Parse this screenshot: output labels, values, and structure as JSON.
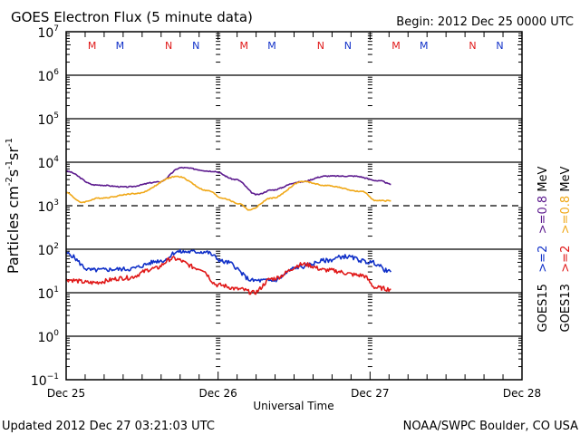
{
  "chart_data": {
    "type": "line",
    "title": "GOES Electron Flux (5 minute data)",
    "begin_label": "Begin: 2012 Dec 25 0000 UTC",
    "xlabel": "Universal Time",
    "ylabel_parts": {
      "main": "Particles cm",
      "e1": "-2",
      "s": "s",
      "e2": "-1",
      "sr": "sr",
      "e3": "-1"
    },
    "x_unit": "hours since 2012 Dec 25 0000 UTC",
    "xlim": [
      0,
      72
    ],
    "x_ticks": [
      {
        "hours": 0,
        "label": "Dec 25"
      },
      {
        "hours": 24,
        "label": "Dec 26"
      },
      {
        "hours": 48,
        "label": "Dec 27"
      },
      {
        "hours": 72,
        "label": "Dec 28"
      }
    ],
    "y_scale": "log",
    "ylim": [
      0.1,
      10000000
    ],
    "y_ticks": [
      {
        "exp": 7,
        "base": "10",
        "sup": "7"
      },
      {
        "exp": 6,
        "base": "10",
        "sup": "6"
      },
      {
        "exp": 5,
        "base": "10",
        "sup": "5"
      },
      {
        "exp": 4,
        "base": "10",
        "sup": "4"
      },
      {
        "exp": 3,
        "base": "10",
        "sup": "3"
      },
      {
        "exp": 2,
        "base": "10",
        "sup": "2"
      },
      {
        "exp": 1,
        "base": "10",
        "sup": "1"
      },
      {
        "exp": 0,
        "base": "10",
        "sup": "0"
      },
      {
        "exp": -1,
        "base": "10",
        "sup": "−1"
      }
    ],
    "grid": "horizontal lines at each decade; dashed alert threshold at 1000",
    "threshold": {
      "value": 1000,
      "style": "dashed"
    },
    "series": [
      {
        "name": ">=0.8 MeV GOES15",
        "color": "#5c1a8e",
        "x": [
          0,
          4.6,
          9.6,
          14.6,
          18.2,
          23.2,
          26.8,
          30.1,
          32.5,
          36.8,
          41.1,
          45.4,
          49.7,
          51.3
        ],
        "y": [
          6200,
          3000,
          2700,
          3500,
          7500,
          6200,
          4000,
          1800,
          2300,
          3500,
          4800,
          4800,
          3700,
          3100
        ]
      },
      {
        "name": ">=0.8 MeV GOES13",
        "color": "#f0a818",
        "x": [
          0,
          2.4,
          5.3,
          11.0,
          17.5,
          22.5,
          24.6,
          27.5,
          28.9,
          32.5,
          37.4,
          41.1,
          46.8,
          49.0,
          51.3
        ],
        "y": [
          2000,
          1200,
          1500,
          1900,
          4700,
          2200,
          1500,
          1100,
          800,
          1500,
          3600,
          2900,
          2100,
          1300,
          1300
        ]
      },
      {
        "name": ">=2 MeV GOES15",
        "color": "#1030c8",
        "x": [
          0,
          3.9,
          9.6,
          15.3,
          17.5,
          21.8,
          25.3,
          29.6,
          32.5,
          36.8,
          41.1,
          43.9,
          48.2,
          51.3
        ],
        "y": [
          80,
          33,
          35,
          55,
          87,
          87,
          50,
          19,
          19,
          39,
          55,
          68,
          50,
          30
        ]
      },
      {
        "name": ">=2 MeV GOES13",
        "color": "#e01818",
        "x": [
          0,
          3.9,
          9.6,
          14.0,
          16.8,
          21.1,
          24.0,
          27.5,
          29.6,
          32.5,
          37.5,
          41.1,
          46.8,
          49.0,
          51.3
        ],
        "y": [
          20,
          17,
          22,
          36,
          61,
          36,
          15,
          12,
          10,
          21,
          45,
          33,
          25,
          13,
          12
        ]
      }
    ],
    "eclipse_markers": [
      {
        "label": "M",
        "hours": 4.1,
        "color": "#e01818"
      },
      {
        "label": "M",
        "hours": 8.5,
        "color": "#1030c8"
      },
      {
        "label": "N",
        "hours": 16.2,
        "color": "#e01818"
      },
      {
        "label": "N",
        "hours": 20.5,
        "color": "#1030c8"
      },
      {
        "label": "M",
        "hours": 28.1,
        "color": "#e01818"
      },
      {
        "label": "M",
        "hours": 32.5,
        "color": "#1030c8"
      },
      {
        "label": "N",
        "hours": 40.2,
        "color": "#e01818"
      },
      {
        "label": "N",
        "hours": 44.5,
        "color": "#1030c8"
      },
      {
        "label": "M",
        "hours": 52.1,
        "color": "#e01818"
      },
      {
        "label": "M",
        "hours": 56.5,
        "color": "#1030c8"
      },
      {
        "label": "N",
        "hours": 64.2,
        "color": "#e01818"
      },
      {
        "label": "N",
        "hours": 68.5,
        "color": "#1030c8"
      }
    ],
    "legend": {
      "placement": "right",
      "columns": [
        {
          "satellite": "GOES15",
          "low": ">=0.8",
          "low_color": "#5c1a8e",
          "high": ">=2",
          "high_color": "#1030c8",
          "unit": "MeV"
        },
        {
          "satellite": "GOES13",
          "low": ">=0.8",
          "low_color": "#f0a818",
          "high": ">=2",
          "high_color": "#e01818",
          "unit": "MeV"
        }
      ]
    }
  },
  "footer": {
    "updated": "Updated 2012 Dec 27 03:21:03 UTC",
    "credit": "NOAA/SWPC Boulder, CO USA"
  }
}
